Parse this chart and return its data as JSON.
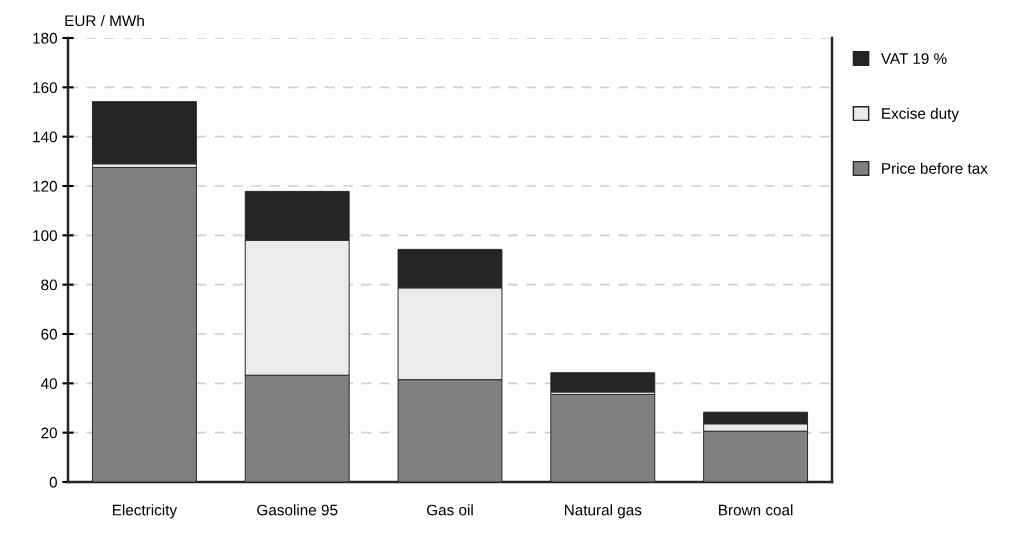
{
  "chart_data": {
    "type": "bar",
    "stacked": true,
    "ylabel": "EUR / MWh",
    "categories": [
      "Electricity",
      "Gasoline 95",
      "Gas oil",
      "Natural gas",
      "Brown coal"
    ],
    "series": [
      {
        "name": "Price before tax",
        "color": "#808080",
        "values": [
          127.5,
          43.3,
          41.5,
          35.5,
          20.6
        ]
      },
      {
        "name": "Excise duty",
        "color": "#ebebeb",
        "values": [
          1.5,
          54.7,
          37.2,
          1.0,
          3.0
        ]
      },
      {
        "name": "VAT 19 %",
        "color": "#252525",
        "values": [
          25.2,
          19.8,
          15.6,
          7.8,
          4.7
        ]
      }
    ],
    "ylim": [
      0,
      180
    ],
    "yticks": [
      0,
      20,
      40,
      60,
      80,
      100,
      120,
      140,
      160,
      180
    ],
    "grid": "y",
    "legend": "right"
  }
}
